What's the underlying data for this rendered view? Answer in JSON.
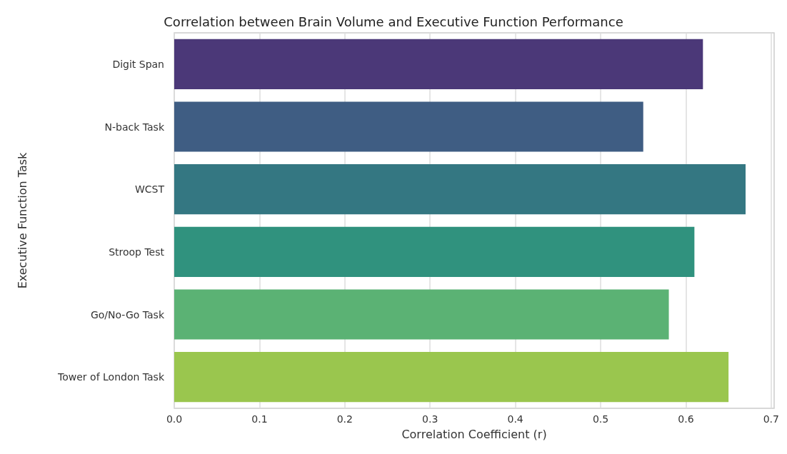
{
  "chart_data": {
    "type": "bar",
    "orientation": "horizontal",
    "title": "Correlation between Brain Volume and Executive Function Performance",
    "xlabel": "Correlation Coefficient (r)",
    "ylabel": "Executive Function Task",
    "categories": [
      "Digit Span",
      "N-back Task",
      "WCST",
      "Stroop Test",
      "Go/No-Go Task",
      "Tower of London Task"
    ],
    "values": [
      0.62,
      0.55,
      0.67,
      0.61,
      0.58,
      0.65
    ],
    "colors": [
      "#4b3878",
      "#3f5d83",
      "#347782",
      "#30927e",
      "#5bb274",
      "#9ac64e"
    ],
    "xlim": [
      0,
      0.7035
    ],
    "xticks": [
      {
        "value": 0,
        "label": "0.0"
      },
      {
        "value": 0.1,
        "label": "0.1"
      },
      {
        "value": 0.2,
        "label": "0.2"
      },
      {
        "value": 0.3,
        "label": "0.3"
      },
      {
        "value": 0.4,
        "label": "0.4"
      },
      {
        "value": 0.5,
        "label": "0.5"
      },
      {
        "value": 0.6,
        "label": "0.6"
      },
      {
        "value": 0.7,
        "label": "0.7"
      }
    ],
    "grid": "x"
  }
}
